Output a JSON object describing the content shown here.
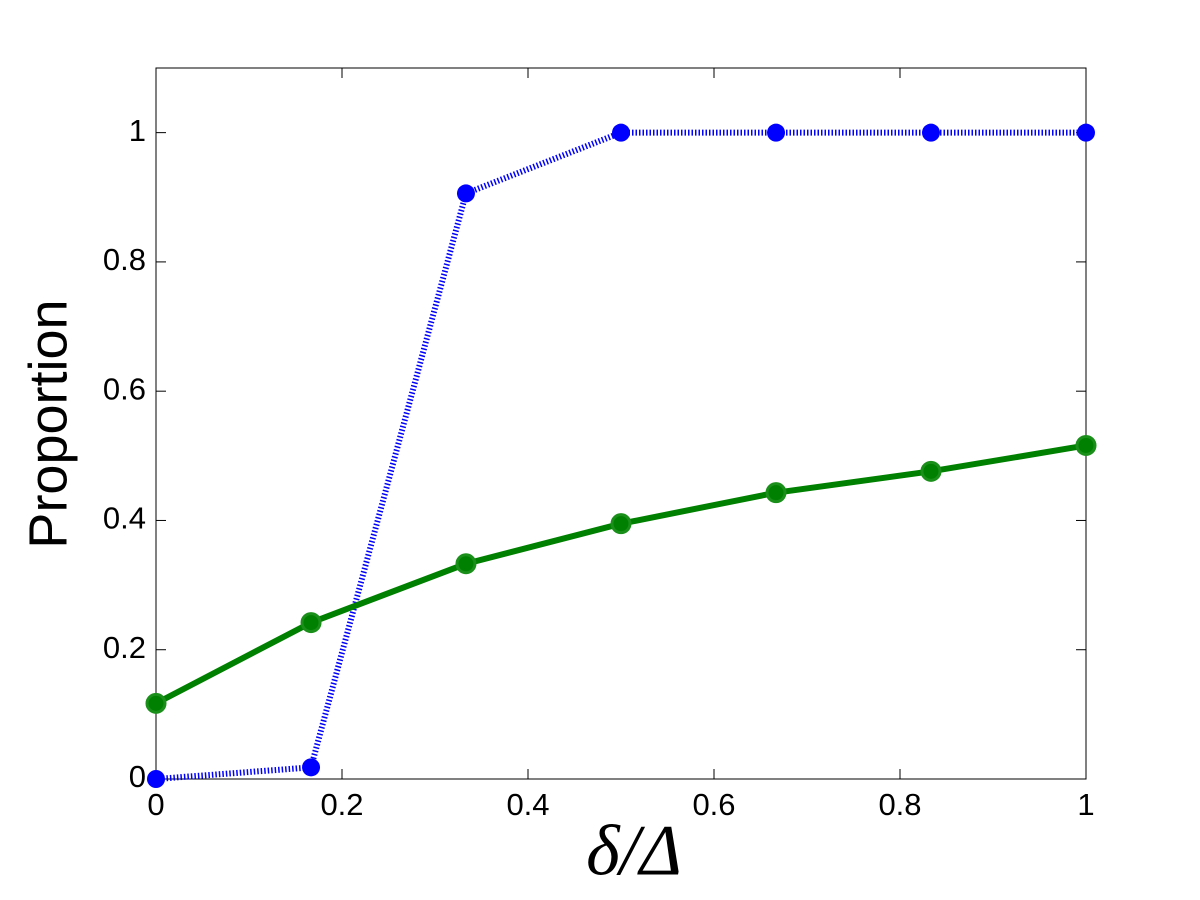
{
  "chart_data": {
    "type": "line",
    "xlabel": "δ/Δ",
    "ylabel": "Proportion",
    "x": [
      0,
      0.1667,
      0.3333,
      0.5,
      0.6667,
      0.8333,
      1
    ],
    "series": [
      {
        "color": "#0000ff",
        "linestyle": "dotted",
        "values": [
          0,
          0.018,
          0.906,
          1,
          1,
          1,
          1
        ]
      },
      {
        "color": "#008000",
        "linestyle": "solid",
        "values": [
          0.117,
          0.242,
          0.333,
          0.395,
          0.443,
          0.476,
          0.516
        ]
      }
    ],
    "xlim": [
      0,
      1
    ],
    "ylim": [
      0,
      1.1
    ],
    "xticks": [
      0,
      0.2,
      0.4,
      0.6,
      0.8,
      1
    ],
    "yticks": [
      0,
      0.2,
      0.4,
      0.6,
      0.8,
      1
    ],
    "grid": false
  }
}
